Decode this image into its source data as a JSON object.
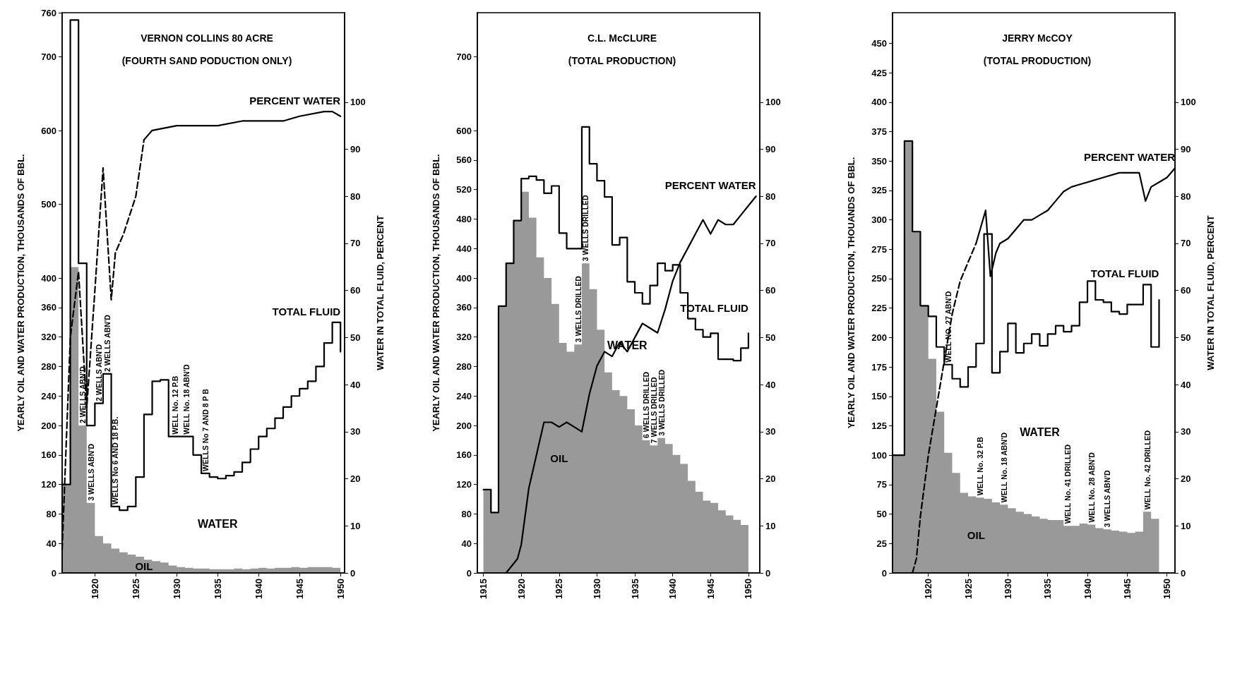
{
  "chart_data": [
    {
      "type": "step",
      "title": "VERNON COLLINS 80 ACRE",
      "subtitle": "(FOURTH SAND PODUCTION ONLY)",
      "ylabel": "YEARLY OIL AND WATER PRODUCTION, THOUSANDS OF BBL.",
      "y2label": "WATER IN TOTAL FLUID, PERCENT",
      "marker": "none",
      "x": [
        1916,
        1917,
        1918,
        1919,
        1920,
        1921,
        1922,
        1923,
        1924,
        1925,
        1926,
        1927,
        1928,
        1929,
        1930,
        1931,
        1932,
        1933,
        1934,
        1935,
        1936,
        1937,
        1938,
        1939,
        1940,
        1941,
        1942,
        1943,
        1944,
        1945,
        1946,
        1947,
        1948,
        1949,
        1950
      ],
      "xlim": [
        1916,
        1950.5
      ],
      "xticks": [
        1920,
        1925,
        1930,
        1935,
        1940,
        1945,
        1950
      ],
      "ylim": [
        0,
        760
      ],
      "yticks": [
        0,
        40,
        80,
        120,
        160,
        200,
        240,
        280,
        320,
        360,
        400,
        500,
        600,
        700,
        760
      ],
      "y2lim": [
        0,
        119
      ],
      "y2ticks": [
        0,
        10,
        20,
        30,
        40,
        50,
        60,
        70,
        80,
        90,
        100
      ],
      "series": [
        {
          "name": "TOTAL FLUID",
          "type": "step",
          "color": "#000000",
          "values": [
            120,
            750,
            420,
            200,
            230,
            270,
            90,
            85,
            90,
            130,
            215,
            260,
            262,
            185,
            185,
            185,
            160,
            135,
            130,
            128,
            132,
            137,
            150,
            168,
            185,
            196,
            210,
            225,
            240,
            250,
            260,
            280,
            312,
            340,
            300
          ]
        },
        {
          "name": "OIL",
          "type": "area",
          "color": "#000000",
          "values": [
            120,
            415,
            200,
            95,
            50,
            40,
            33,
            28,
            25,
            22,
            18,
            16,
            14,
            10,
            8,
            7,
            6,
            6,
            5,
            5,
            5,
            6,
            5,
            6,
            7,
            6,
            7,
            7,
            8,
            7,
            8,
            8,
            8,
            7,
            5
          ]
        },
        {
          "type": "line",
          "axis": "y2",
          "line_style": "dashed",
          "color": "#000000",
          "x": [
            1916,
            1917,
            1918,
            1919,
            1920,
            1921,
            1922,
            1922.5,
            1923.5,
            1925,
            1926
          ],
          "values": [
            5,
            50,
            64,
            35,
            60,
            86,
            58,
            68,
            72,
            80,
            92
          ]
        },
        {
          "name": "PERCENT WATER",
          "type": "line",
          "axis": "y2",
          "line_style": "solid",
          "color": "#000000",
          "x": [
            1926,
            1927,
            1930,
            1933,
            1935,
            1938,
            1940,
            1943,
            1945,
            1948,
            1949,
            1950
          ],
          "values": [
            92,
            94,
            95,
            95,
            95,
            96,
            96,
            96,
            97,
            98,
            98,
            97
          ]
        }
      ],
      "annotations": [
        "WATER",
        {
          "text": "2 WELLS ABN'D",
          "x": 1918.5,
          "y": 200
        },
        {
          "text": "2 WELLS ABN'D",
          "x": 1920.5,
          "y": 230
        },
        {
          "text": "2 WELLS ABN'D",
          "x": 1921.5,
          "y": 270
        },
        {
          "text": "3 WELLS ABN'D",
          "x": 1919.5,
          "y": 95
        },
        {
          "text": "WELLS No 6 AND 18 P.B.",
          "x": 1922.5,
          "y": 90
        },
        {
          "text": "WELL No. 12 P.B",
          "x": 1929.8,
          "y": 185
        },
        {
          "text": "WELL No. 18 ABN'D",
          "x": 1931.2,
          "y": 185
        },
        {
          "text": "WELLS No 7 AND 8 P B",
          "x": 1933.5,
          "y": 135
        }
      ]
    },
    {
      "type": "step",
      "title": "C.L. McCLURE",
      "subtitle": "(TOTAL PRODUCTION)",
      "ylabel": "YEARLY OIL AND WATER PRODUCTION, THOUSANDS OF BBL.",
      "marker": "none",
      "x": [
        1915,
        1916,
        1917,
        1918,
        1919,
        1920,
        1921,
        1922,
        1923,
        1924,
        1925,
        1926,
        1927,
        1928,
        1929,
        1930,
        1931,
        1932,
        1933,
        1934,
        1935,
        1936,
        1937,
        1938,
        1939,
        1940,
        1941,
        1942,
        1943,
        1944,
        1945,
        1946,
        1947,
        1948,
        1949,
        1950
      ],
      "xlim": [
        1914.2,
        1951.5
      ],
      "xticks": [
        1915,
        1920,
        1925,
        1930,
        1935,
        1940,
        1945,
        1950
      ],
      "ylim": [
        0,
        760
      ],
      "yticks": [
        0,
        40,
        80,
        120,
        160,
        200,
        240,
        280,
        320,
        360,
        400,
        440,
        480,
        520,
        560,
        600,
        700
      ],
      "y2lim": [
        0,
        119
      ],
      "y2ticks": [
        0,
        10,
        20,
        30,
        40,
        50,
        60,
        70,
        80,
        90,
        100
      ],
      "series": [
        {
          "name": "TOTAL FLUID",
          "type": "step",
          "color": "#000000",
          "values": [
            113,
            82,
            362,
            420,
            478,
            535,
            538,
            533,
            515,
            525,
            461,
            440,
            440,
            605,
            555,
            532,
            510,
            445,
            455,
            395,
            380,
            365,
            390,
            420,
            410,
            418,
            380,
            345,
            330,
            320,
            325,
            290,
            290,
            288,
            305,
            325
          ]
        },
        {
          "name": "OIL",
          "type": "area",
          "color": "#000000",
          "values": [
            113,
            82,
            362,
            420,
            478,
            517,
            482,
            428,
            400,
            365,
            312,
            300,
            310,
            420,
            385,
            330,
            272,
            248,
            240,
            222,
            200,
            180,
            173,
            183,
            175,
            160,
            148,
            125,
            110,
            98,
            95,
            85,
            78,
            72,
            65,
            62
          ]
        },
        {
          "name": "PERCENT WATER",
          "type": "line",
          "axis": "y2",
          "line_style": "solid",
          "color": "#000000",
          "x": [
            1918,
            1919.5,
            1920,
            1921,
            1922,
            1923,
            1924,
            1925,
            1926,
            1927,
            1928,
            1929,
            1930,
            1931,
            1932,
            1933,
            1934,
            1935,
            1936,
            1937,
            1938,
            1939,
            1940,
            1941,
            1942,
            1943,
            1944,
            1945,
            1946,
            1947,
            1948,
            1949,
            1950,
            1951
          ],
          "values": [
            0,
            3,
            6,
            18,
            25,
            32,
            32,
            31,
            32,
            31,
            30,
            38,
            44,
            47,
            46,
            49,
            47,
            50,
            53,
            52,
            51,
            56,
            62,
            66,
            69,
            72,
            75,
            72,
            75,
            74,
            74,
            76,
            78,
            80
          ]
        }
      ],
      "annotations": [
        "WATER",
        {
          "text": "3 WELLS DRILLED",
          "x": 1928.5,
          "y": 420
        },
        {
          "text": "3 WELLS DRILLED",
          "x": 1927.5,
          "y": 310
        },
        {
          "text": "6 WELLS DRILLED",
          "x": 1936.5,
          "y": 180
        },
        {
          "text": "7 WELLS DRILLED",
          "x": 1937.5,
          "y": 173
        },
        {
          "text": "3 WELLS DRILLED",
          "x": 1938.5,
          "y": 183
        }
      ]
    },
    {
      "type": "step",
      "title": "JERRY McCOY",
      "subtitle": "(TOTAL PRODUCTION)",
      "ylabel": "YEARLY OIL AND WATER PRODUCTION, THOUANDS OF BBL.",
      "y2label": "WATER IN TOTAL FLUID, PERCENT",
      "marker": "none",
      "x": [
        1915.5,
        1917,
        1918,
        1919,
        1920,
        1921,
        1922,
        1923,
        1924,
        1925,
        1926,
        1927,
        1928,
        1929,
        1930,
        1931,
        1932,
        1933,
        1934,
        1935,
        1936,
        1937,
        1938,
        1939,
        1940,
        1941,
        1942,
        1943,
        1944,
        1945,
        1946,
        1947,
        1948,
        1949
      ],
      "xlim": [
        1915.5,
        1951
      ],
      "xticks": [
        1920,
        1925,
        1930,
        1935,
        1940,
        1945,
        1950
      ],
      "ylim": [
        0,
        476
      ],
      "yticks": [
        0,
        25,
        50,
        75,
        100,
        125,
        150,
        175,
        200,
        225,
        250,
        275,
        300,
        325,
        350,
        375,
        400,
        425,
        450
      ],
      "y2lim": [
        0,
        119
      ],
      "y2ticks": [
        0,
        10,
        20,
        30,
        40,
        50,
        60,
        70,
        80,
        90,
        100
      ],
      "series": [
        {
          "name": "TOTAL FLUID",
          "type": "step",
          "color": "#000000",
          "values": [
            100,
            367,
            290,
            227,
            218,
            192,
            177,
            165,
            158,
            175,
            195,
            288,
            170,
            188,
            212,
            187,
            195,
            203,
            193,
            203,
            210,
            205,
            210,
            230,
            248,
            232,
            230,
            222,
            220,
            228,
            228,
            245,
            192,
            232
          ]
        },
        {
          "name": "OIL",
          "type": "area",
          "color": "#000000",
          "values": [
            100,
            367,
            290,
            227,
            182,
            137,
            102,
            85,
            68,
            65,
            64,
            63,
            60,
            58,
            55,
            52,
            50,
            48,
            46,
            45,
            45,
            40,
            40,
            42,
            41,
            38,
            37,
            36,
            35,
            34,
            35,
            52,
            46,
            40
          ]
        },
        {
          "type": "line",
          "axis": "y2",
          "line_style": "dashed",
          "color": "#000000",
          "x": [
            1918,
            1918.5,
            1919,
            1920,
            1921,
            1922,
            1923,
            1924,
            1925,
            1926
          ],
          "values": [
            0,
            3,
            12,
            25,
            35,
            45,
            55,
            62,
            66,
            70
          ]
        },
        {
          "name": "PERCENT WATER",
          "type": "line",
          "axis": "y2",
          "line_style": "solid",
          "color": "#000000",
          "x": [
            1926,
            1927.2,
            1927.8,
            1928.5,
            1929,
            1930,
            1931,
            1932,
            1933,
            1934,
            1935,
            1936,
            1937,
            1938,
            1940,
            1942,
            1944,
            1946.5,
            1947.3,
            1948,
            1949,
            1950,
            1951
          ],
          "values": [
            70,
            77,
            63,
            68,
            70,
            71,
            73,
            75,
            75,
            76,
            77,
            79,
            81,
            82,
            83,
            84,
            85,
            85,
            79,
            82,
            83,
            84,
            86
          ]
        }
      ],
      "annotations": [
        "WATER",
        {
          "text": "WELL NO. 27 ABN'D",
          "x": 1922.5,
          "y": 177
        },
        {
          "text": "WELL No. 32 P.B",
          "x": 1926.5,
          "y": 64
        },
        {
          "text": "WELL No. 18 ABN'D",
          "x": 1929.5,
          "y": 58
        },
        {
          "text": "WELL No. 41 DRILLED",
          "x": 1937.5,
          "y": 40
        },
        {
          "text": "WELL No. 28 ABN'D",
          "x": 1940.5,
          "y": 41
        },
        {
          "text": "3 WELLS ABN'D",
          "x": 1942.5,
          "y": 37
        },
        {
          "text": "WELL No. 42 DRILLED",
          "x": 1947.5,
          "y": 52
        }
      ]
    }
  ]
}
